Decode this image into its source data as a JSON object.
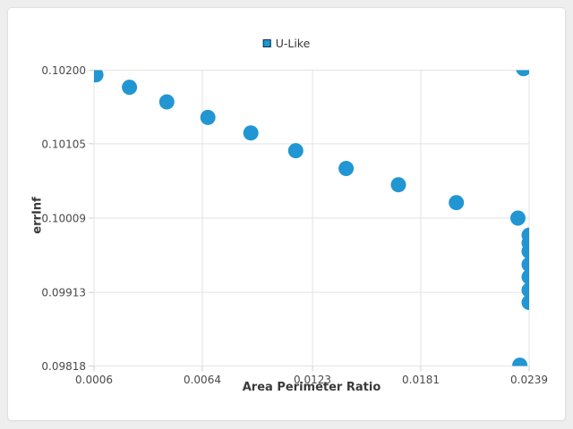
{
  "window": {
    "background_color": "#eeeeee",
    "card_color": "#ffffff"
  },
  "chart_data": {
    "type": "scatter",
    "series_name": "U-Like",
    "title": "",
    "xlabel": "Area Perimeter Ratio",
    "ylabel": "errInf",
    "xlim": [
      0.0006,
      0.0239
    ],
    "ylim": [
      0.09818,
      0.102
    ],
    "xticks": [
      0.0006,
      0.0064,
      0.0123,
      0.0181,
      0.0239
    ],
    "xtick_labels": [
      "0.0006",
      "0.0064",
      "0.0123",
      "0.0181",
      "0.0239"
    ],
    "yticks": [
      0.102,
      0.10105,
      0.10009,
      0.09913,
      0.09818
    ],
    "ytick_labels": [
      "0.10200",
      "0.10105",
      "0.10009",
      "0.09913",
      "0.09818"
    ],
    "grid": true,
    "legend_position": "top-center",
    "marker": {
      "shape": "circle",
      "radius_px": 8.5,
      "color": "#2196d2"
    },
    "legend_marker_border": "#0d2f4a",
    "grid_color": "#e3e3e3",
    "tick_color": "#cfcfcf",
    "points": [
      [
        0.0007,
        0.10194
      ],
      [
        0.0025,
        0.10178
      ],
      [
        0.0045,
        0.10159
      ],
      [
        0.0067,
        0.10139
      ],
      [
        0.009,
        0.10119
      ],
      [
        0.0114,
        0.10096
      ],
      [
        0.0141,
        0.10073
      ],
      [
        0.0169,
        0.10052
      ],
      [
        0.02,
        0.10029
      ],
      [
        0.0233,
        0.10009
      ],
      [
        0.0236,
        0.10202
      ],
      [
        0.0239,
        0.09977
      ],
      [
        0.0239,
        0.09987
      ],
      [
        0.0239,
        0.09966
      ],
      [
        0.0239,
        0.09949
      ],
      [
        0.0239,
        0.09933
      ],
      [
        0.0239,
        0.09916
      ],
      [
        0.0239,
        0.099
      ],
      [
        0.0234,
        0.09819
      ]
    ]
  }
}
